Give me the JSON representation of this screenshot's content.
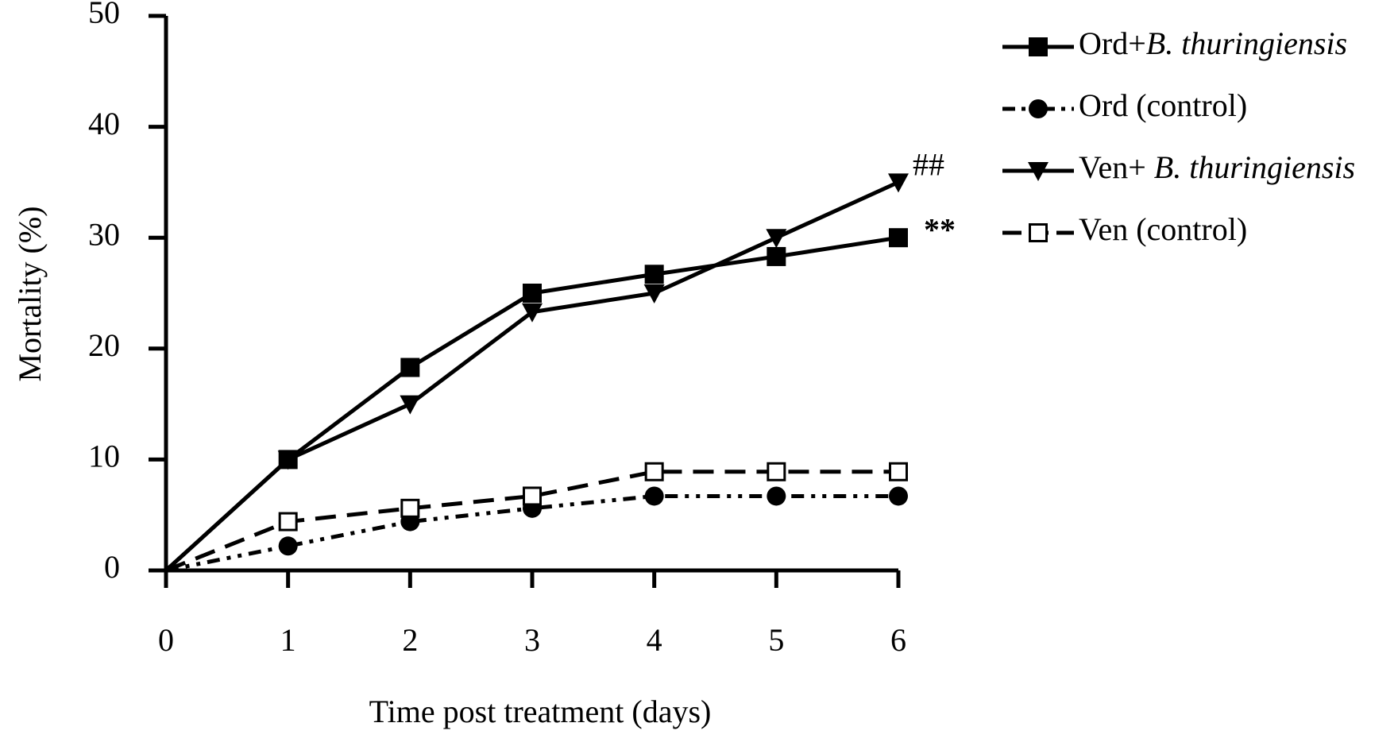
{
  "chart_data": {
    "type": "line",
    "x_label": "Time post treatment (days)",
    "y_label": "Mortality (%)",
    "x": [
      0,
      1,
      2,
      3,
      4,
      5,
      6
    ],
    "xlim": [
      0,
      6
    ],
    "xticks": [
      0,
      1,
      2,
      3,
      4,
      5,
      6
    ],
    "ylim": [
      0,
      50
    ],
    "yticks": [
      0,
      10,
      20,
      30,
      40,
      50
    ],
    "grid": false,
    "legend": "right",
    "series": [
      {
        "name": "Ord+B. thuringiensis",
        "color": "#000000",
        "line_style": "solid",
        "marker": "square",
        "values": [
          0,
          10,
          18.3,
          25,
          26.7,
          28.3,
          30
        ]
      },
      {
        "name": "Ord (control)",
        "color": "#000000",
        "line_style": "dashdotdot",
        "marker": "circle",
        "values": [
          0,
          2.2,
          4.4,
          5.6,
          6.7,
          6.7,
          6.7
        ]
      },
      {
        "name": "Ven+ B. thuringiensis",
        "color": "#000000",
        "line_style": "solid",
        "marker": "triangle-down",
        "values": [
          0,
          10,
          15,
          23.3,
          25,
          30,
          35
        ]
      },
      {
        "name": "Ven (control)",
        "color": "#000000",
        "line_style": "dashed",
        "marker": "square-open",
        "values": [
          0,
          4.4,
          5.6,
          6.7,
          8.9,
          8.9,
          8.9
        ]
      }
    ],
    "annotations": [
      {
        "text": "**"
      },
      {
        "text": "##"
      }
    ]
  }
}
